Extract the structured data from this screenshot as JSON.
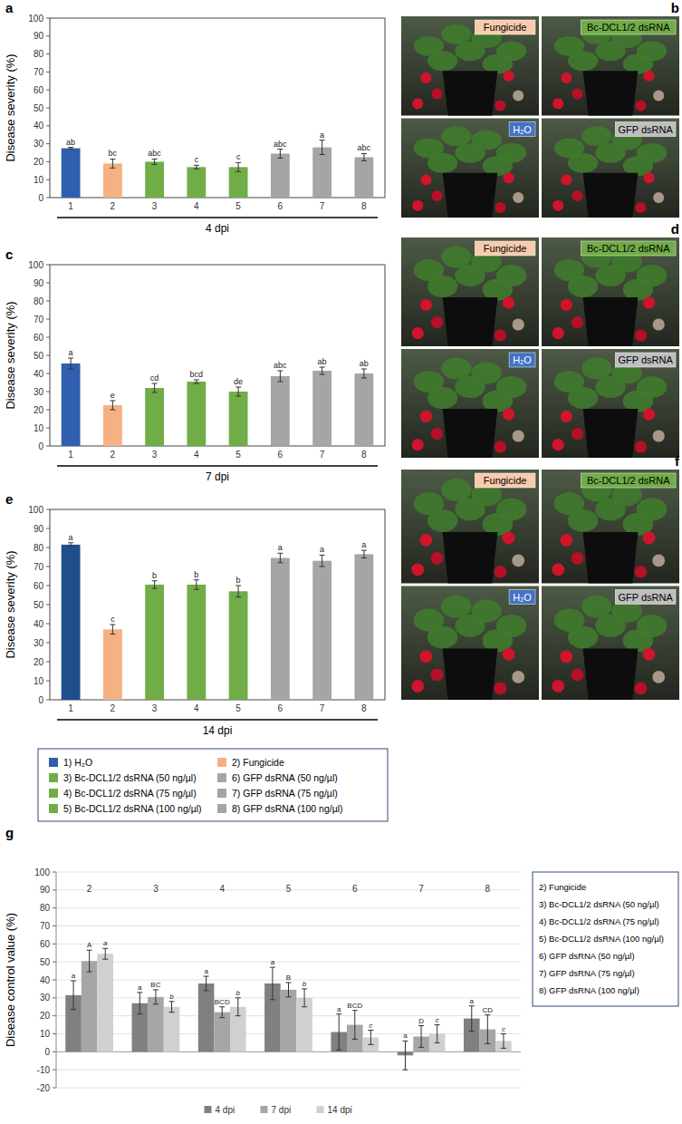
{
  "chart_data": [
    {
      "type": "bar",
      "title": "a",
      "categories": [
        "1",
        "2",
        "3",
        "4",
        "5",
        "6",
        "7",
        "8"
      ],
      "values": [
        27.5,
        19,
        20,
        17,
        17,
        24.5,
        28,
        22.5
      ],
      "errors": [
        0.5,
        2.5,
        1.5,
        1,
        2.5,
        2.5,
        4,
        2
      ],
      "letters": [
        "ab",
        "bc",
        "abc",
        "c",
        "c",
        "abc",
        "a",
        "abc"
      ],
      "colors": [
        "#2f5fae",
        "#f4b183",
        "#70ad47",
        "#70ad47",
        "#70ad47",
        "#a5a5a5",
        "#a5a5a5",
        "#a5a5a5"
      ],
      "x_label": "4 dpi",
      "y_label": "Disease severity (%)",
      "ylim": [
        0,
        100
      ],
      "yticks": [
        0,
        10,
        20,
        30,
        40,
        50,
        60,
        70,
        80,
        90,
        100
      ],
      "grid": false
    },
    {
      "type": "bar",
      "title": "c",
      "categories": [
        "1",
        "2",
        "3",
        "4",
        "5",
        "6",
        "7",
        "8"
      ],
      "values": [
        45.5,
        22.5,
        32,
        35.5,
        30,
        38.5,
        41.5,
        40
      ],
      "errors": [
        3,
        2.5,
        2.5,
        1,
        2.5,
        3,
        2,
        2.5
      ],
      "letters": [
        "a",
        "e",
        "cd",
        "bcd",
        "de",
        "abc",
        "ab",
        "ab"
      ],
      "colors": [
        "#2f5fae",
        "#f4b183",
        "#70ad47",
        "#70ad47",
        "#70ad47",
        "#a5a5a5",
        "#a5a5a5",
        "#a5a5a5"
      ],
      "x_label": "7 dpi",
      "y_label": "Disease severity (%)",
      "ylim": [
        0,
        100
      ],
      "yticks": [
        0,
        10,
        20,
        30,
        40,
        50,
        60,
        70,
        80,
        90,
        100
      ],
      "grid": false
    },
    {
      "type": "bar",
      "title": "e",
      "categories": [
        "1",
        "2",
        "3",
        "4",
        "5",
        "6",
        "7",
        "8"
      ],
      "values": [
        81.5,
        37,
        60.5,
        60.5,
        57,
        74.5,
        73,
        76.5
      ],
      "errors": [
        1,
        2.5,
        2,
        2.5,
        3,
        2.5,
        3,
        2
      ],
      "letters": [
        "a",
        "c",
        "b",
        "b",
        "b",
        "a",
        "a",
        "a"
      ],
      "colors": [
        "#1f4e8c",
        "#f4b183",
        "#70ad47",
        "#70ad47",
        "#70ad47",
        "#a5a5a5",
        "#a5a5a5",
        "#a5a5a5"
      ],
      "x_label": "14 dpi",
      "y_label": "Disease severity (%)",
      "ylim": [
        0,
        100
      ],
      "yticks": [
        0,
        10,
        20,
        30,
        40,
        50,
        60,
        70,
        80,
        90,
        100
      ],
      "grid": false
    },
    {
      "type": "bar",
      "title": "g",
      "categories": [
        "2",
        "3",
        "4",
        "5",
        "6",
        "7",
        "8"
      ],
      "series": [
        {
          "name": "4 dpi",
          "color": "#808080",
          "values": [
            31.5,
            27,
            38,
            38,
            11,
            -2,
            18.5
          ],
          "errors": [
            8,
            6,
            4,
            9,
            10,
            8,
            7
          ],
          "letters": [
            "a",
            "a",
            "a",
            "a",
            "a",
            "a",
            "a"
          ]
        },
        {
          "name": "7 dpi",
          "color": "#a6a6a6",
          "values": [
            50.5,
            30.5,
            22,
            34.5,
            15,
            8.5,
            12.5
          ],
          "errors": [
            6,
            4,
            3,
            4,
            8,
            6,
            8
          ],
          "letters": [
            "A",
            "BC",
            "BCD",
            "B",
            "BCD",
            "D",
            "CD"
          ]
        },
        {
          "name": "14 dpi",
          "color": "#d0d0d0",
          "values": [
            54.5,
            25,
            25,
            30,
            8,
            10,
            6
          ],
          "errors": [
            3,
            3,
            5,
            5,
            4,
            5,
            4
          ],
          "letters": [
            "a",
            "b",
            "b",
            "b",
            "c",
            "c",
            "c"
          ]
        }
      ],
      "y_label": "Disease control value (%)",
      "ylim": [
        -20,
        100
      ],
      "yticks": [
        -20,
        -10,
        0,
        10,
        20,
        30,
        40,
        50,
        60,
        70,
        80,
        90,
        100
      ],
      "grid": true,
      "legend": "bottom"
    }
  ],
  "legend_box": {
    "columns": [
      [
        {
          "label": "1) H₂O",
          "color": "#2f5fae"
        },
        {
          "label": "3) Bc-DCL1/2 dsRNA (50 ng/µl)",
          "color": "#70ad47"
        },
        {
          "label": "4) Bc-DCL1/2 dsRNA (75 ng/µl)",
          "color": "#70ad47"
        },
        {
          "label": "5) Bc-DCL1/2 dsRNA (100 ng/µl)",
          "color": "#70ad47"
        }
      ],
      [
        {
          "label": "2) Fungicide",
          "color": "#f4b183"
        },
        {
          "label": "6) GFP dsRNA  (50 ng/µl)",
          "color": "#a5a5a5"
        },
        {
          "label": "7) GFP dsRNA (75 ng/µl)",
          "color": "#a5a5a5"
        },
        {
          "label": "8) GFP dsRNA (100 ng/µl)",
          "color": "#a5a5a5"
        }
      ]
    ]
  },
  "side_legend": [
    "2) Fungicide",
    "3) Bc-DCL1/2 dsRNA (50 ng/µl)",
    "4) Bc-DCL1/2 dsRNA (75 ng/µl)",
    "5) Bc-DCL1/2 dsRNA (100 ng/µl)",
    "6) GFP dsRNA (50 ng/µl)",
    "7) GFP dsRNA (75 ng/µl)",
    "8) GFP dsRNA (100 ng/µl)"
  ],
  "photos": [
    {
      "label": "b",
      "tiles": [
        {
          "text": "Fungicide",
          "color": "#f8cbad"
        },
        {
          "text": "Bc-DCL1/2 dsRNA",
          "color": "#70ad47"
        },
        {
          "text": "H₂O",
          "color": "#4472c4"
        },
        {
          "text": "GFP dsRNA",
          "color": "#bfbfbf"
        }
      ]
    },
    {
      "label": "d",
      "tiles": [
        {
          "text": "Fungicide",
          "color": "#f8cbad"
        },
        {
          "text": "Bc-DCL1/2 dsRNA",
          "color": "#70ad47"
        },
        {
          "text": "H₂O",
          "color": "#4472c4"
        },
        {
          "text": "GFP dsRNA",
          "color": "#bfbfbf"
        }
      ]
    },
    {
      "label": "f",
      "tiles": [
        {
          "text": "Fungicide",
          "color": "#f8cbad"
        },
        {
          "text": "Bc-DCL1/2 dsRNA",
          "color": "#70ad47"
        },
        {
          "text": "H₂O",
          "color": "#4472c4"
        },
        {
          "text": "GFP dsRNA",
          "color": "#bfbfbf"
        }
      ]
    }
  ]
}
